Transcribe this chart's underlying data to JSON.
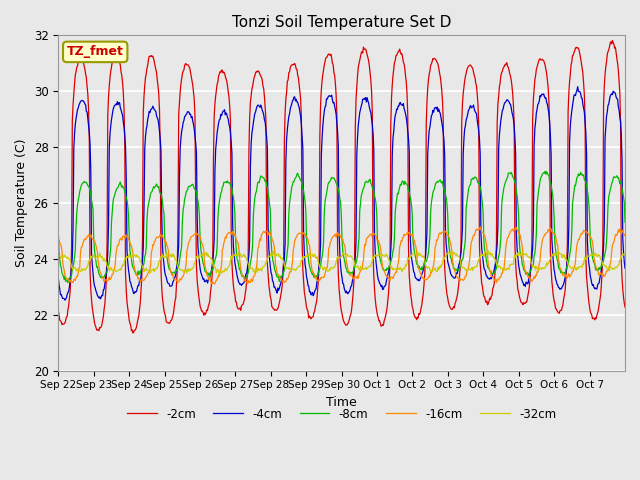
{
  "title": "Tonzi Soil Temperature Set D",
  "xlabel": "Time",
  "ylabel": "Soil Temperature (C)",
  "ylim": [
    20,
    32
  ],
  "n_days": 16,
  "annotation_text": "TZ_fmet",
  "annotation_color": "#cc0000",
  "annotation_bg": "#ffffcc",
  "annotation_border": "#999900",
  "series": [
    {
      "label": "-2cm",
      "color": "#dd0000",
      "amplitude": 4.6,
      "mean": 26.3,
      "phase_shift": 0.38,
      "sharpness": 0.25,
      "trend": 0.03
    },
    {
      "label": "-4cm",
      "color": "#0000cc",
      "amplitude": 3.3,
      "mean": 26.1,
      "phase_shift": 0.42,
      "sharpness": 0.3,
      "trend": 0.025
    },
    {
      "label": "-8cm",
      "color": "#00bb00",
      "amplitude": 1.7,
      "mean": 25.0,
      "phase_shift": 0.5,
      "sharpness": 0.45,
      "trend": 0.02
    },
    {
      "label": "-16cm",
      "color": "#ff8800",
      "amplitude": 0.85,
      "mean": 24.0,
      "phase_shift": 0.62,
      "sharpness": 0.5,
      "trend": 0.012
    },
    {
      "label": "-32cm",
      "color": "#cccc00",
      "amplitude": 0.28,
      "mean": 23.85,
      "phase_shift": 0.85,
      "sharpness": 0.5,
      "trend": 0.005
    }
  ],
  "tick_labels": [
    "Sep 22",
    "Sep 23",
    "Sep 24",
    "Sep 25",
    "Sep 26",
    "Sep 27",
    "Sep 28",
    "Sep 29",
    "Sep 30",
    "Oct 1",
    "Oct 2",
    "Oct 3",
    "Oct 4",
    "Oct 5",
    "Oct 6",
    "Oct 7"
  ],
  "tick_positions": [
    0,
    1,
    2,
    3,
    4,
    5,
    6,
    7,
    8,
    9,
    10,
    11,
    12,
    13,
    14,
    15
  ],
  "background_color": "#e8e8e8",
  "plot_bg": "#e8e8e8",
  "grid_color": "#ffffff",
  "figsize": [
    6.4,
    4.8
  ],
  "dpi": 100
}
